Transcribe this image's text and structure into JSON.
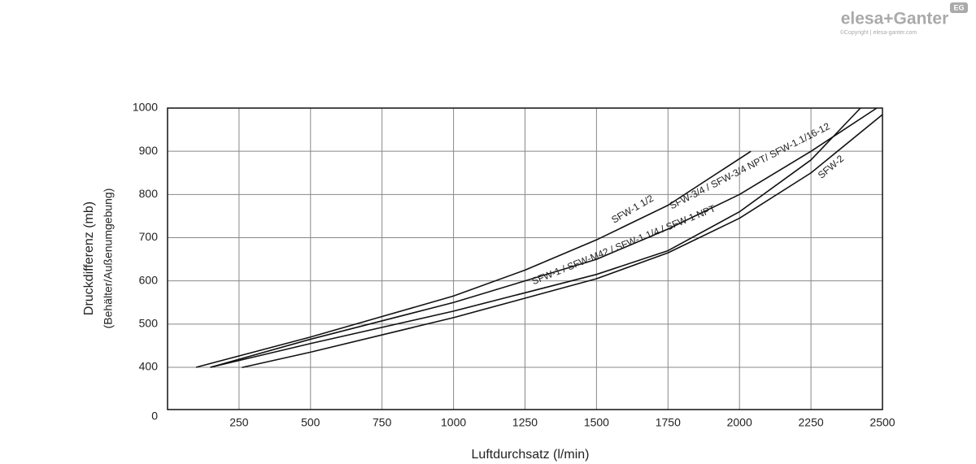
{
  "logo": {
    "brand": "elesa+Ganter",
    "badge": "EG",
    "copyright": "©Copyright | elesa-ganter.com"
  },
  "chart_data": {
    "type": "line",
    "xlabel": "Luftdurchsatz (l/min)",
    "ylabel": "Druckdifferenz (mb)",
    "ylabel_sub": "(Behälter/Außenumgebung)",
    "xlim": [
      0,
      2500
    ],
    "xticks": [
      250,
      500,
      750,
      1000,
      1250,
      1500,
      1750,
      2000,
      2250,
      2500
    ],
    "ylim": [
      0,
      1000
    ],
    "yticks": [
      0,
      400,
      500,
      600,
      700,
      800,
      900,
      1000
    ],
    "grid": true,
    "series": [
      {
        "name": "SFW-1 1/2",
        "color": "#111111",
        "x": [
          100,
          500,
          1000,
          1250,
          1500,
          1750,
          2040
        ],
        "values": [
          400,
          470,
          565,
          625,
          695,
          775,
          900
        ]
      },
      {
        "name": "SFW-3/4 / SFW-3/4 NPT/ SFW-1.1/16-12",
        "color": "#111111",
        "x": [
          150,
          500,
          1000,
          1500,
          1750,
          2000,
          2250,
          2480
        ],
        "values": [
          400,
          465,
          550,
          650,
          720,
          800,
          900,
          1000
        ]
      },
      {
        "name": "SFW-1 / SFW-M42 / SFW-1 1/4 / SFW-1 NPT",
        "color": "#111111",
        "x": [
          150,
          500,
          1000,
          1500,
          1750,
          2000,
          2250,
          2423
        ],
        "values": [
          400,
          455,
          530,
          615,
          670,
          760,
          880,
          1000
        ]
      },
      {
        "name": "SFW-2",
        "color": "#111111",
        "x": [
          260,
          500,
          1000,
          1500,
          1750,
          2000,
          2250,
          2500
        ],
        "values": [
          398,
          435,
          515,
          605,
          665,
          745,
          850,
          985
        ]
      }
    ]
  }
}
